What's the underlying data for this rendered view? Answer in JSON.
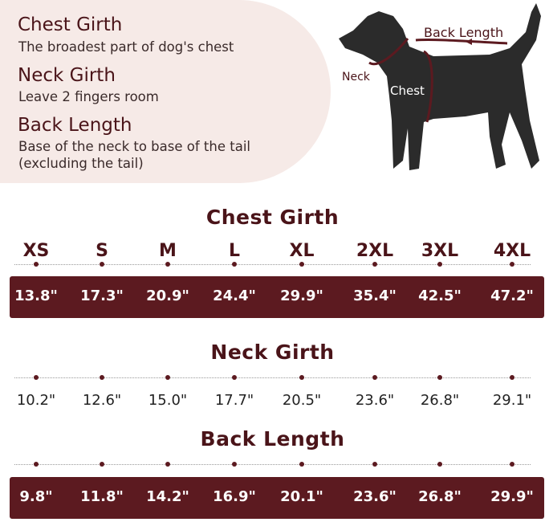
{
  "intro": [
    {
      "heading": "Chest Girth",
      "desc": "The broadest part of dog's chest"
    },
    {
      "heading": "Neck Girth",
      "desc": "Leave 2 fingers room"
    },
    {
      "heading": "Back Length",
      "desc": "Base of the neck to base of the tail (excluding the tail)"
    }
  ],
  "diagram": {
    "back_label": "Back Length",
    "neck_label": "Neck",
    "chest_label": "Chest"
  },
  "sizes": [
    "XS",
    "S",
    "M",
    "L",
    "XL",
    "2XL",
    "3XL",
    "4XL"
  ],
  "sections": [
    {
      "title": "Chest Girth",
      "values": [
        "13.8\"",
        "17.3\"",
        "20.9\"",
        "24.4\"",
        "29.9\"",
        "35.4\"",
        "42.5\"",
        "47.2\""
      ]
    },
    {
      "title": "Neck Girth",
      "values": [
        "10.2\"",
        "12.6\"",
        "15.0\"",
        "17.7\"",
        "20.5\"",
        "23.6\"",
        "26.8\"",
        "29.1\""
      ]
    },
    {
      "title": "Back Length",
      "values": [
        "9.8\"",
        "11.8\"",
        "14.2\"",
        "16.9\"",
        "20.1\"",
        "23.6\"",
        "26.8\"",
        "29.9\""
      ]
    }
  ],
  "colors": {
    "accent": "#5c1a20",
    "panel": "#f6eae7"
  }
}
